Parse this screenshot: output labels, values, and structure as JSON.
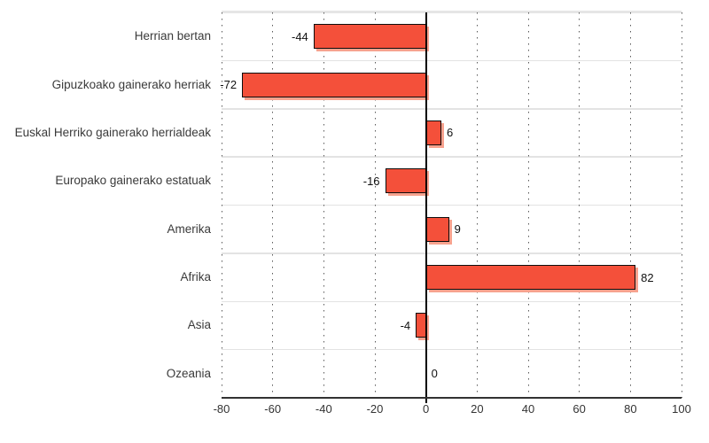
{
  "chart_data": {
    "type": "bar",
    "orientation": "horizontal",
    "title": "",
    "xlabel": "",
    "ylabel": "",
    "categories": [
      "Herrian bertan",
      "Gipuzkoako gainerako herriak",
      "Euskal Herriko gainerako herrialdeak",
      "Europako gainerako estatuak",
      "Amerika",
      "Afrika",
      "Asia",
      "Ozeania"
    ],
    "values": [
      -44,
      -72,
      6,
      -16,
      9,
      82,
      -4,
      0
    ],
    "value_labels": [
      "-44",
      "-72",
      "6",
      "-16",
      "9",
      "82",
      "-4",
      "0"
    ],
    "xlim": [
      -80,
      100
    ],
    "x_ticks": [
      -80,
      -60,
      -40,
      -20,
      0,
      20,
      40,
      60,
      80,
      100
    ],
    "x_tick_labels": [
      "-80",
      "-60",
      "-40",
      "-20",
      "0",
      "20",
      "40",
      "60",
      "80",
      "100"
    ],
    "grid": true,
    "legend": "none",
    "colors": {
      "bar_fill": "#f4503a",
      "bar_border": "#0d0d0d",
      "bar_shadow": "#f7a28e",
      "zero_line": "#000000",
      "axis_line": "#333333",
      "gridline": "#5a5a5a",
      "separator": "#e3e3e3",
      "text": "#3a3a3a",
      "background": "#ffffff"
    }
  }
}
